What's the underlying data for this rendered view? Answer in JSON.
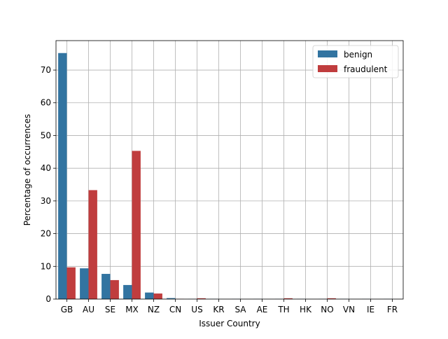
{
  "chart_data": {
    "type": "bar",
    "title": "",
    "xlabel": "Issuer Country",
    "ylabel": "Percentage of occurrences",
    "categories": [
      "GB",
      "AU",
      "SE",
      "MX",
      "NZ",
      "CN",
      "US",
      "KR",
      "SA",
      "AE",
      "TH",
      "HK",
      "NO",
      "VN",
      "IE",
      "FR"
    ],
    "series": [
      {
        "name": "benign",
        "color": "#3274a1",
        "values": [
          75.2,
          9.4,
          7.7,
          4.3,
          2.0,
          0.3,
          0.05,
          0.05,
          0.05,
          0.05,
          0.05,
          0.05,
          0.05,
          0.05,
          0.05,
          0.05
        ]
      },
      {
        "name": "fraudulent",
        "color": "#c03d3e",
        "values": [
          9.7,
          33.3,
          5.8,
          45.3,
          1.7,
          0.05,
          0.25,
          0.0,
          0.0,
          0.0,
          0.25,
          0.0,
          0.25,
          0.0,
          0.0,
          0.0
        ]
      }
    ],
    "ylim": [
      0,
      79
    ],
    "yticks": [
      0,
      10,
      20,
      30,
      40,
      50,
      60,
      70
    ],
    "grid": true,
    "legend_position": "top-right"
  }
}
